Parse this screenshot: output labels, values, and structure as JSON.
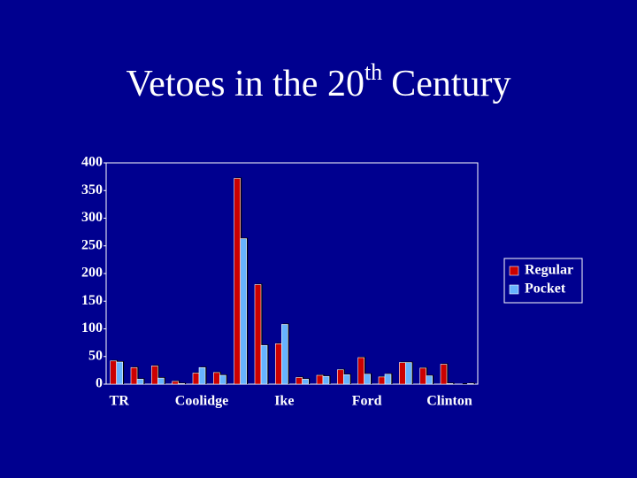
{
  "chart_data": {
    "type": "bar",
    "title": [
      "Vetoes in the 20",
      "th",
      "Century"
    ],
    "categories": [
      "TR",
      null,
      null,
      null,
      "Coolidge",
      null,
      null,
      null,
      "Ike",
      null,
      null,
      null,
      "Ford",
      null,
      null,
      null,
      "Clinton",
      null
    ],
    "series": [
      {
        "name": "Regular",
        "color": "#cc0000",
        "values": [
          42,
          30,
          33,
          5,
          20,
          21,
          372,
          180,
          73,
          12,
          16,
          26,
          48,
          13,
          39,
          29,
          36,
          0
        ]
      },
      {
        "name": "Pocket",
        "color": "#66b3ff",
        "values": [
          40,
          9,
          11,
          1,
          30,
          16,
          263,
          70,
          108,
          9,
          14,
          17,
          18,
          18,
          39,
          15,
          1,
          1
        ]
      }
    ],
    "ylim": [
      0,
      400
    ],
    "yticks": [
      0,
      50,
      100,
      150,
      200,
      250,
      300,
      350,
      400
    ],
    "grid": false
  }
}
